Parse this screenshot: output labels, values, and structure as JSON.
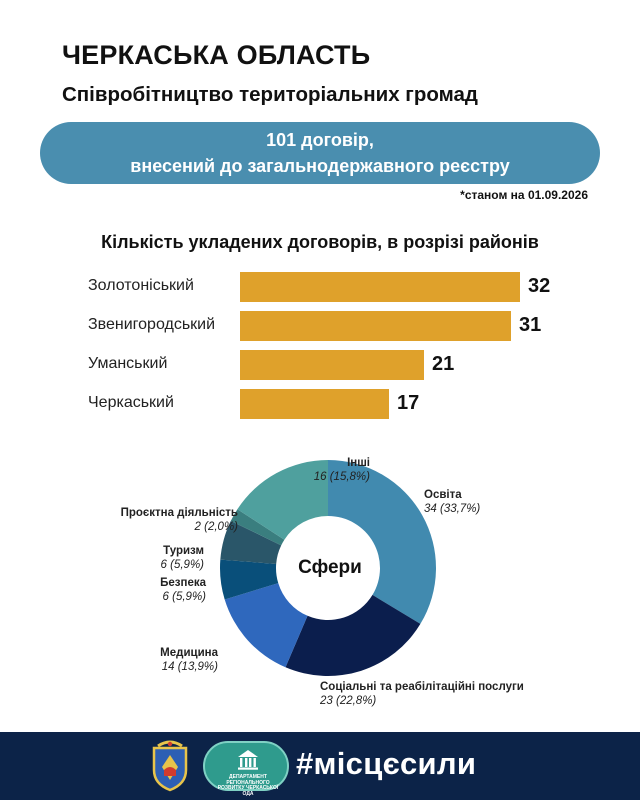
{
  "header": {
    "title": "ЧЕРКАСЬКА ОБЛАСТЬ",
    "subtitle": "Співробітництво територіальних громад"
  },
  "banner": {
    "line1": "101 договір,",
    "line2": "внесений до загальнодержавного реєстру"
  },
  "as_of": "*станом на 01.09.2026",
  "colors": {
    "banner": "#4a8eaf",
    "bar": "#dfa12b",
    "footer": "#0c2348"
  },
  "chart_data": [
    {
      "type": "bar",
      "orientation": "horizontal",
      "title": "Кількість укладених договорів, в розрізі районів",
      "categories": [
        "Золотоніський",
        "Звенигородський",
        "Уманський",
        "Черкаський"
      ],
      "values": [
        32,
        31,
        21,
        17
      ],
      "value_labels": [
        "32",
        "31",
        "21",
        "17"
      ],
      "xlim": [
        0,
        32
      ],
      "grid": false,
      "color": "#dfa12b"
    },
    {
      "type": "pie",
      "style": "donut",
      "title": "Сфери",
      "slices": [
        {
          "name": "Освіта",
          "value": 34,
          "label": "34 (33,7%)",
          "color": "#418aaf"
        },
        {
          "name": "Соціальні та реабілітаційні послуги",
          "value": 23,
          "label": "23 (22,8%)",
          "color": "#0b1e4d"
        },
        {
          "name": "Медицина",
          "value": 14,
          "label": "14 (13,9%)",
          "color": "#2f68bd"
        },
        {
          "name": "Безпека",
          "value": 6,
          "label": "6 (5,9%)",
          "color": "#094f7a"
        },
        {
          "name": "Туризм",
          "value": 6,
          "label": "6 (5,9%)",
          "color": "#2a5669"
        },
        {
          "name": "Проєктна діяльність",
          "value": 2,
          "label": "2 (2,0%)",
          "color": "#3a7e7f"
        },
        {
          "name": "Інші",
          "value": 16,
          "label": "16 (15,8%)",
          "color": "#4fa09e"
        }
      ]
    }
  ],
  "footer": {
    "hashtag": "#місцєсили",
    "dept_text": "ДЕПАРТАМЕНТ РЕГІОНАЛЬНОГО РОЗВИТКУ ЧЕРКАСЬКОЇ ОДА",
    "coat_icon": "coat-of-arms-icon",
    "dept_icon": "department-logo-icon"
  }
}
